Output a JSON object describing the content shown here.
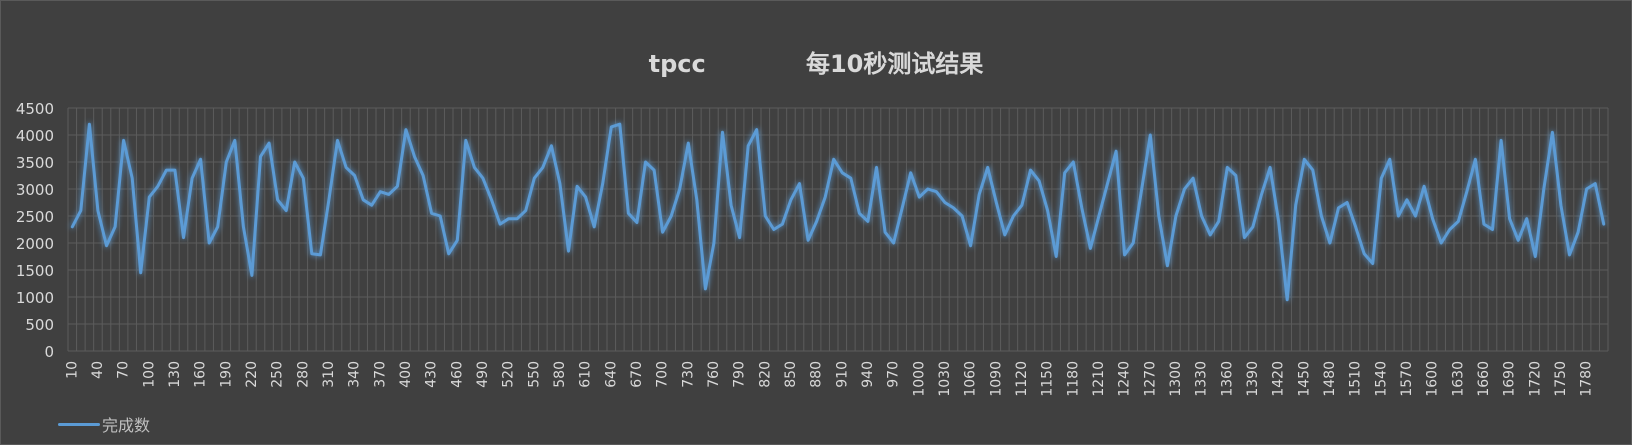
{
  "chart_data": {
    "type": "line",
    "title": "tpcc            每10秒测试结果",
    "xlabel": "",
    "ylabel": "",
    "ylim": [
      0,
      4500
    ],
    "yticks": [
      0,
      500,
      1000,
      1500,
      2000,
      2500,
      3000,
      3500,
      4000,
      4500
    ],
    "x_start": 10,
    "x_step": 10,
    "x_tick_every": 3,
    "grid": true,
    "legend_position": "bottom-left",
    "series": [
      {
        "name": "完成数",
        "color": "#5b9bd5",
        "values": [
          2300,
          2600,
          4200,
          2600,
          1950,
          2300,
          3900,
          3200,
          1450,
          2850,
          3050,
          3350,
          3350,
          2100,
          3200,
          3550,
          2000,
          2300,
          3500,
          3900,
          2300,
          1400,
          3600,
          3850,
          2800,
          2600,
          3500,
          3200,
          1800,
          1780,
          2800,
          3900,
          3400,
          3250,
          2800,
          2700,
          2950,
          2900,
          3050,
          4100,
          3600,
          3250,
          2550,
          2500,
          1800,
          2050,
          3900,
          3400,
          3200,
          2800,
          2350,
          2450,
          2450,
          2600,
          3200,
          3400,
          3800,
          3100,
          1850,
          3050,
          2850,
          2300,
          3100,
          4150,
          4200,
          2550,
          2380,
          3500,
          3350,
          2200,
          2500,
          3000,
          3850,
          2800,
          1150,
          2000,
          4050,
          2700,
          2100,
          3800,
          4100,
          2500,
          2250,
          2350,
          2800,
          3100,
          2050,
          2400,
          2850,
          3550,
          3300,
          3200,
          2550,
          2400,
          3400,
          2200,
          2000,
          2650,
          3300,
          2850,
          3000,
          2950,
          2750,
          2650,
          2500,
          1950,
          2900,
          3400,
          2750,
          2150,
          2500,
          2700,
          3350,
          3150,
          2600,
          1750,
          3300,
          3500,
          2650,
          1900,
          2500,
          3100,
          3700,
          1780,
          2000,
          3000,
          4000,
          2500,
          1580,
          2500,
          3000,
          3200,
          2500,
          2150,
          2400,
          3400,
          3250,
          2100,
          2300,
          2900,
          3400,
          2400,
          950,
          2700,
          3550,
          3350,
          2500,
          2000,
          2650,
          2750,
          2300,
          1800,
          1620,
          3200,
          3550,
          2500,
          2800,
          2500,
          3050,
          2450,
          2000,
          2250,
          2400,
          2950,
          3550,
          2350,
          2250,
          3900,
          2450,
          2050,
          2450,
          1750,
          3000,
          4050,
          2700,
          1780,
          2200,
          3000,
          3100,
          2350
        ]
      }
    ]
  }
}
